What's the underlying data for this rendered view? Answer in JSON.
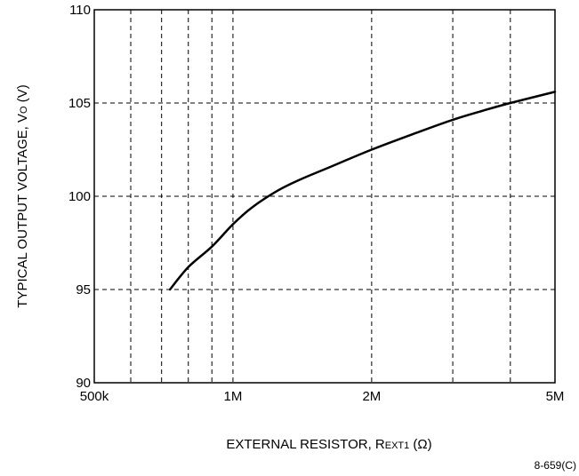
{
  "chart_data": {
    "type": "line",
    "title": "",
    "x_scale": "log",
    "xlim": [
      500000,
      5000000
    ],
    "ylim": [
      90,
      110
    ],
    "grid": true,
    "x_ticks": [
      {
        "value": 500000,
        "label": "500k"
      },
      {
        "value": 1000000,
        "label": "1M"
      },
      {
        "value": 2000000,
        "label": "2M"
      },
      {
        "value": 5000000,
        "label": "5M"
      }
    ],
    "x_minor_grid": [
      600000,
      700000,
      800000,
      900000,
      1000000,
      2000000,
      3000000,
      4000000
    ],
    "y_ticks": [
      {
        "value": 90,
        "label": "90"
      },
      {
        "value": 95,
        "label": "95"
      },
      {
        "value": 100,
        "label": "100"
      },
      {
        "value": 105,
        "label": "105"
      },
      {
        "value": 110,
        "label": "110"
      }
    ],
    "xlabel": {
      "main": "EXTERNAL RESISTOR, R",
      "sub": "EXT1",
      "unit": " (Ω)"
    },
    "ylabel": {
      "main": "TYPICAL OUTPUT VOLTAGE, V",
      "sub": "O",
      "unit": " (V)"
    },
    "series": [
      {
        "x": [
          730000,
          800000,
          900000,
          1000000,
          1100000,
          1250000,
          1400000,
          1600000,
          2000000,
          2500000,
          3000000,
          3500000,
          4000000,
          5000000
        ],
        "y": [
          95.0,
          96.2,
          97.3,
          98.5,
          99.4,
          100.3,
          100.9,
          101.5,
          102.5,
          103.4,
          104.1,
          104.6,
          105.0,
          105.6
        ]
      }
    ]
  },
  "figure_code": "8-659(C)"
}
